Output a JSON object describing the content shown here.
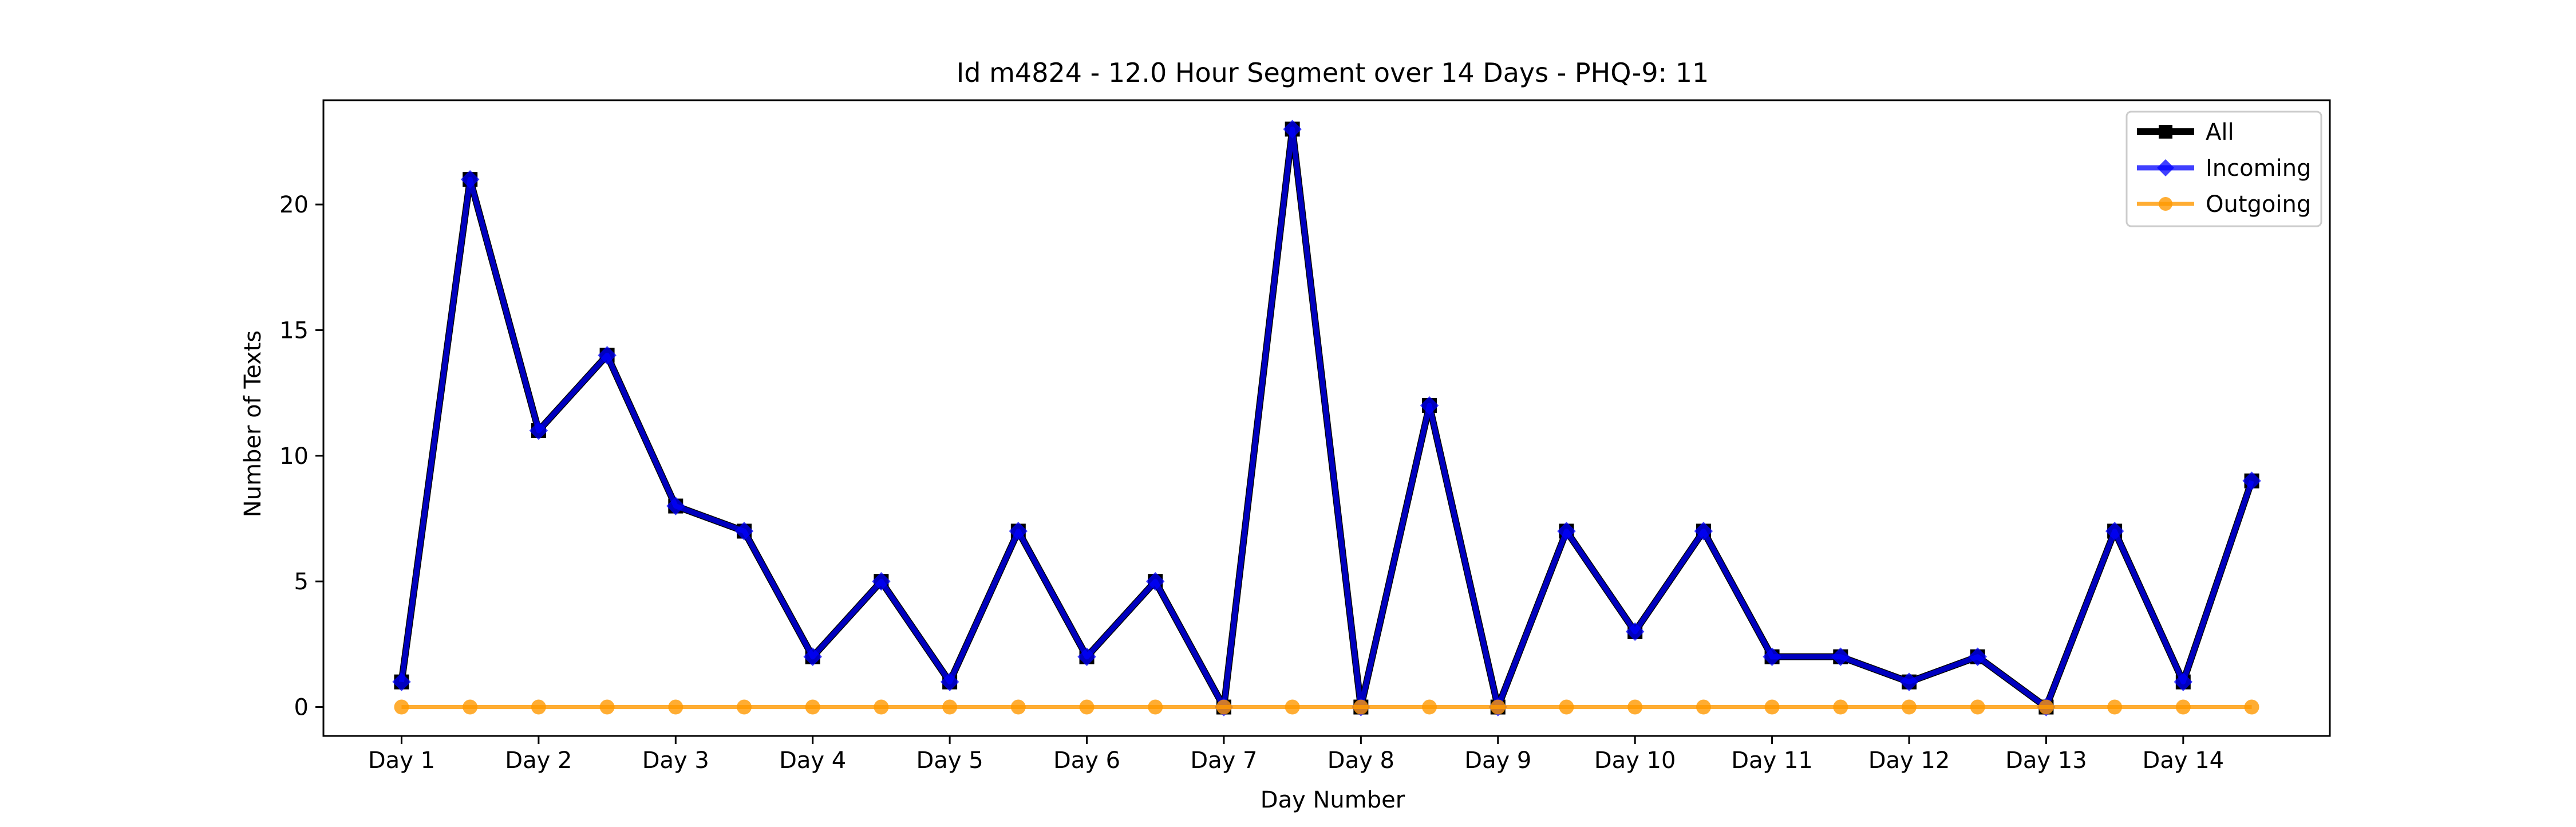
{
  "colors": {
    "all": "#000000",
    "incoming": "#0000ff",
    "outgoing": "#ff9900"
  },
  "chart_data": {
    "type": "line",
    "title": "Id m4824 - 12.0 Hour Segment over 14 Days - PHQ-9: 11",
    "xlabel": "Day Number",
    "ylabel": "Number of Texts",
    "x": [
      1,
      1.5,
      2,
      2.5,
      3,
      3.5,
      4,
      4.5,
      5,
      5.5,
      6,
      6.5,
      7,
      7.5,
      8,
      8.5,
      9,
      9.5,
      10,
      10.5,
      11,
      11.5,
      12,
      12.5,
      13,
      13.5,
      14,
      14.5
    ],
    "xticks": [
      1,
      2,
      3,
      4,
      5,
      6,
      7,
      8,
      9,
      10,
      11,
      12,
      13,
      14
    ],
    "xticklabels": [
      "Day 1",
      "Day 2",
      "Day 3",
      "Day 4",
      "Day 5",
      "Day 6",
      "Day 7",
      "Day 8",
      "Day 9",
      "Day 10",
      "Day 11",
      "Day 12",
      "Day 13",
      "Day 14"
    ],
    "yticks": [
      0,
      5,
      10,
      15,
      20
    ],
    "ylim": [
      -1.15,
      24.15
    ],
    "xlim": [
      0.43,
      15.07
    ],
    "grid": false,
    "legend_position": "top-right",
    "series": [
      {
        "name": "All",
        "marker": "square",
        "values": [
          1,
          21,
          11,
          14,
          8,
          7,
          2,
          5,
          1,
          7,
          2,
          5,
          0,
          23,
          0,
          12,
          0,
          7,
          3,
          7,
          2,
          2,
          1,
          2,
          0,
          7,
          1,
          9
        ]
      },
      {
        "name": "Incoming",
        "marker": "diamond",
        "values": [
          1,
          21,
          11,
          14,
          8,
          7,
          2,
          5,
          1,
          7,
          2,
          5,
          0,
          23,
          0,
          12,
          0,
          7,
          3,
          7,
          2,
          2,
          1,
          2,
          0,
          7,
          1,
          9
        ]
      },
      {
        "name": "Outgoing",
        "marker": "circle",
        "values": [
          0,
          0,
          0,
          0,
          0,
          0,
          0,
          0,
          0,
          0,
          0,
          0,
          0,
          0,
          0,
          0,
          0,
          0,
          0,
          0,
          0,
          0,
          0,
          0,
          0,
          0,
          0,
          0
        ]
      }
    ]
  }
}
